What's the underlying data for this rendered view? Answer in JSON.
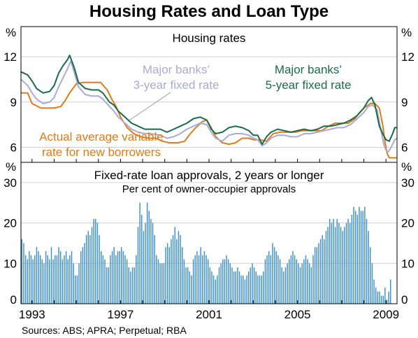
{
  "title": "Housing Rates and Loan Type",
  "source": "Sources: ABS; APRA; Perpetual; RBA",
  "colors": {
    "variable": "#e07b1a",
    "fixed3": "#a9aad8",
    "fixed5": "#1a6b4b",
    "bars": "#3d8fd0"
  },
  "chart_data": [
    {
      "type": "line",
      "title": "Housing rates",
      "ylabel": "%",
      "ylim": [
        5,
        14
      ],
      "yticks": [
        6,
        9,
        12
      ],
      "xlim": [
        1992.5,
        2009.5
      ],
      "xticks": [
        "1993",
        "1997",
        "2001",
        "2005",
        "2009"
      ],
      "series": [
        {
          "name": "Actual average variable rate for new borrowers",
          "label_lines": [
            "Actual average variable",
            "rate for new borrowers"
          ],
          "points": [
            [
              1992.5,
              9.6
            ],
            [
              1992.8,
              9.6
            ],
            [
              1993.0,
              8.9
            ],
            [
              1993.4,
              8.6
            ],
            [
              1994.0,
              8.6
            ],
            [
              1994.3,
              8.7
            ],
            [
              1994.5,
              9.1
            ],
            [
              1994.7,
              9.6
            ],
            [
              1995.0,
              10.2
            ],
            [
              1995.3,
              10.3
            ],
            [
              1995.6,
              10.3
            ],
            [
              1995.9,
              10.3
            ],
            [
              1996.1,
              10.3
            ],
            [
              1996.4,
              9.8
            ],
            [
              1996.6,
              9.2
            ],
            [
              1996.8,
              8.7
            ],
            [
              1997.0,
              8.0
            ],
            [
              1997.3,
              7.3
            ],
            [
              1997.6,
              6.9
            ],
            [
              1997.9,
              6.7
            ],
            [
              1998.3,
              6.6
            ],
            [
              1998.6,
              6.6
            ],
            [
              1998.9,
              6.4
            ],
            [
              1999.2,
              6.3
            ],
            [
              1999.6,
              6.3
            ],
            [
              1999.9,
              6.4
            ],
            [
              2000.1,
              6.8
            ],
            [
              2000.4,
              7.3
            ],
            [
              2000.7,
              7.7
            ],
            [
              2000.9,
              7.8
            ],
            [
              2001.1,
              7.3
            ],
            [
              2001.3,
              6.7
            ],
            [
              2001.6,
              6.3
            ],
            [
              2001.9,
              6.2
            ],
            [
              2002.2,
              6.3
            ],
            [
              2002.5,
              6.6
            ],
            [
              2002.8,
              6.6
            ],
            [
              2003.0,
              6.5
            ],
            [
              2003.3,
              6.5
            ],
            [
              2003.6,
              6.4
            ],
            [
              2003.9,
              6.9
            ],
            [
              2004.2,
              7.0
            ],
            [
              2004.6,
              7.0
            ],
            [
              2004.9,
              7.0
            ],
            [
              2005.2,
              7.1
            ],
            [
              2005.5,
              7.1
            ],
            [
              2005.8,
              7.1
            ],
            [
              2006.1,
              7.1
            ],
            [
              2006.4,
              7.4
            ],
            [
              2006.7,
              7.6
            ],
            [
              2007.0,
              7.6
            ],
            [
              2007.3,
              7.6
            ],
            [
              2007.6,
              7.9
            ],
            [
              2007.8,
              8.3
            ],
            [
              2008.0,
              8.6
            ],
            [
              2008.3,
              8.9
            ],
            [
              2008.5,
              8.9
            ],
            [
              2008.7,
              8.6
            ],
            [
              2008.85,
              7.5
            ],
            [
              2008.95,
              6.4
            ],
            [
              2009.05,
              5.6
            ],
            [
              2009.15,
              5.3
            ],
            [
              2009.3,
              5.3
            ],
            [
              2009.5,
              5.3
            ]
          ]
        },
        {
          "name": "Major banks' 3-year fixed rate",
          "label_lines": [
            "Major banks’",
            "3-year fixed rate"
          ],
          "points": [
            [
              1992.5,
              10.5
            ],
            [
              1992.8,
              10.1
            ],
            [
              1993.0,
              9.6
            ],
            [
              1993.2,
              9.2
            ],
            [
              1993.5,
              8.9
            ],
            [
              1993.8,
              9.0
            ],
            [
              1994.0,
              9.3
            ],
            [
              1994.2,
              10.0
            ],
            [
              1994.4,
              10.6
            ],
            [
              1994.6,
              11.2
            ],
            [
              1994.75,
              11.7
            ],
            [
              1994.9,
              11.0
            ],
            [
              1995.1,
              10.0
            ],
            [
              1995.4,
              9.5
            ],
            [
              1995.7,
              9.4
            ],
            [
              1996.0,
              9.4
            ],
            [
              1996.2,
              9.2
            ],
            [
              1996.5,
              8.7
            ],
            [
              1996.7,
              8.4
            ],
            [
              1996.9,
              8.0
            ],
            [
              1997.2,
              7.6
            ],
            [
              1997.5,
              7.2
            ],
            [
              1997.8,
              7.0
            ],
            [
              1998.1,
              6.9
            ],
            [
              1998.4,
              6.9
            ],
            [
              1998.8,
              6.8
            ],
            [
              1999.1,
              6.6
            ],
            [
              1999.4,
              6.7
            ],
            [
              1999.7,
              6.9
            ],
            [
              2000.0,
              7.2
            ],
            [
              2000.3,
              7.4
            ],
            [
              2000.6,
              7.6
            ],
            [
              2000.9,
              7.5
            ],
            [
              2001.1,
              7.0
            ],
            [
              2001.3,
              6.6
            ],
            [
              2001.6,
              6.4
            ],
            [
              2001.9,
              6.8
            ],
            [
              2002.2,
              6.9
            ],
            [
              2002.5,
              6.9
            ],
            [
              2002.8,
              6.8
            ],
            [
              2003.0,
              6.6
            ],
            [
              2003.2,
              6.5
            ],
            [
              2003.4,
              6.1
            ],
            [
              2003.6,
              6.3
            ],
            [
              2003.8,
              6.6
            ],
            [
              2004.1,
              6.8
            ],
            [
              2004.4,
              6.8
            ],
            [
              2004.7,
              6.7
            ],
            [
              2005.0,
              6.7
            ],
            [
              2005.3,
              6.9
            ],
            [
              2005.6,
              6.9
            ],
            [
              2005.9,
              7.0
            ],
            [
              2006.2,
              7.1
            ],
            [
              2006.5,
              7.2
            ],
            [
              2006.8,
              7.3
            ],
            [
              2007.1,
              7.3
            ],
            [
              2007.4,
              7.5
            ],
            [
              2007.7,
              7.9
            ],
            [
              2008.0,
              8.3
            ],
            [
              2008.2,
              8.7
            ],
            [
              2008.4,
              8.8
            ],
            [
              2008.6,
              8.5
            ],
            [
              2008.75,
              7.3
            ],
            [
              2008.9,
              6.2
            ],
            [
              2009.0,
              5.8
            ],
            [
              2009.1,
              5.7
            ],
            [
              2009.2,
              5.9
            ],
            [
              2009.3,
              6.2
            ],
            [
              2009.4,
              6.5
            ],
            [
              2009.5,
              6.6
            ]
          ]
        },
        {
          "name": "Major banks' 5-year fixed rate",
          "label_lines": [
            "Major banks’",
            "5-year fixed rate"
          ],
          "points": [
            [
              1992.5,
              11.0
            ],
            [
              1992.8,
              10.8
            ],
            [
              1993.0,
              10.4
            ],
            [
              1993.2,
              9.9
            ],
            [
              1993.5,
              9.6
            ],
            [
              1993.8,
              9.7
            ],
            [
              1994.0,
              10.1
            ],
            [
              1994.2,
              10.9
            ],
            [
              1994.4,
              11.4
            ],
            [
              1994.6,
              11.8
            ],
            [
              1994.7,
              12.1
            ],
            [
              1994.9,
              11.3
            ],
            [
              1995.1,
              10.3
            ],
            [
              1995.4,
              9.9
            ],
            [
              1995.7,
              9.8
            ],
            [
              1996.0,
              9.8
            ],
            [
              1996.2,
              9.6
            ],
            [
              1996.5,
              9.0
            ],
            [
              1996.7,
              8.8
            ],
            [
              1996.9,
              8.4
            ],
            [
              1997.2,
              8.0
            ],
            [
              1997.5,
              7.6
            ],
            [
              1997.8,
              7.4
            ],
            [
              1998.1,
              7.2
            ],
            [
              1998.4,
              7.2
            ],
            [
              1998.8,
              7.2
            ],
            [
              1999.1,
              7.0
            ],
            [
              1999.4,
              7.2
            ],
            [
              1999.7,
              7.4
            ],
            [
              2000.0,
              7.6
            ],
            [
              2000.3,
              7.9
            ],
            [
              2000.6,
              8.0
            ],
            [
              2000.9,
              7.8
            ],
            [
              2001.1,
              7.2
            ],
            [
              2001.3,
              6.9
            ],
            [
              2001.6,
              7.0
            ],
            [
              2001.9,
              7.3
            ],
            [
              2002.2,
              7.4
            ],
            [
              2002.5,
              7.3
            ],
            [
              2002.8,
              7.1
            ],
            [
              2003.0,
              6.8
            ],
            [
              2003.2,
              6.8
            ],
            [
              2003.4,
              6.2
            ],
            [
              2003.6,
              6.7
            ],
            [
              2003.8,
              7.0
            ],
            [
              2004.1,
              7.2
            ],
            [
              2004.4,
              7.1
            ],
            [
              2004.7,
              7.0
            ],
            [
              2005.0,
              7.1
            ],
            [
              2005.3,
              7.2
            ],
            [
              2005.6,
              7.1
            ],
            [
              2005.9,
              7.2
            ],
            [
              2006.2,
              7.4
            ],
            [
              2006.5,
              7.4
            ],
            [
              2006.8,
              7.5
            ],
            [
              2007.1,
              7.6
            ],
            [
              2007.4,
              7.8
            ],
            [
              2007.7,
              8.1
            ],
            [
              2008.0,
              8.6
            ],
            [
              2008.2,
              9.1
            ],
            [
              2008.35,
              9.3
            ],
            [
              2008.5,
              8.8
            ],
            [
              2008.7,
              7.4
            ],
            [
              2008.85,
              6.9
            ],
            [
              2009.0,
              6.5
            ],
            [
              2009.15,
              6.4
            ],
            [
              2009.3,
              6.9
            ],
            [
              2009.4,
              7.3
            ],
            [
              2009.5,
              7.3
            ]
          ]
        }
      ]
    },
    {
      "type": "bar",
      "title": "Fixed-rate loan approvals, 2 years or longer",
      "subtitle": "Per cent of owner-occupier approvals",
      "ylabel": "%",
      "ylim": [
        0,
        35
      ],
      "yticks": [
        0,
        10,
        20,
        30
      ],
      "x_start": 1992.5,
      "x_step": 0.0833333,
      "values": [
        16,
        15,
        12,
        11,
        13,
        12,
        11,
        12,
        14,
        13,
        12,
        11,
        10,
        13,
        12,
        11,
        14,
        11,
        12,
        12,
        14,
        13,
        11,
        12,
        13,
        11,
        12,
        13,
        10,
        7,
        7,
        10,
        13,
        14,
        15,
        17,
        18,
        17,
        19,
        21,
        21,
        20,
        17,
        13,
        12,
        11,
        9,
        9,
        12,
        13,
        14,
        12,
        13,
        13,
        14,
        13,
        12,
        11,
        9,
        8,
        9,
        9,
        12,
        19,
        25,
        22,
        18,
        20,
        25,
        23,
        21,
        20,
        17,
        12,
        11,
        10,
        10,
        10,
        14,
        15,
        14,
        16,
        17,
        19,
        16,
        18,
        17,
        14,
        11,
        9,
        9,
        8,
        7,
        11,
        12,
        13,
        12,
        14,
        12,
        13,
        12,
        11,
        9,
        8,
        7,
        6,
        7,
        9,
        10,
        11,
        11,
        12,
        11,
        10,
        9,
        8,
        8,
        9,
        8,
        7,
        7,
        6,
        7,
        8,
        9,
        10,
        9,
        8,
        7,
        7,
        7,
        8,
        11,
        12,
        13,
        12,
        15,
        14,
        13,
        12,
        11,
        9,
        8,
        9,
        10,
        11,
        12,
        13,
        12,
        11,
        10,
        9,
        10,
        11,
        12,
        11,
        10,
        9,
        12,
        14,
        14,
        15,
        16,
        17,
        16,
        18,
        19,
        21,
        20,
        21,
        19,
        21,
        20,
        19,
        18,
        19,
        20,
        21,
        20,
        22,
        24,
        23,
        22,
        24,
        23,
        23,
        24,
        21,
        18,
        14,
        10,
        6,
        4,
        3,
        3,
        2,
        2,
        4,
        1,
        3,
        6
      ]
    }
  ]
}
